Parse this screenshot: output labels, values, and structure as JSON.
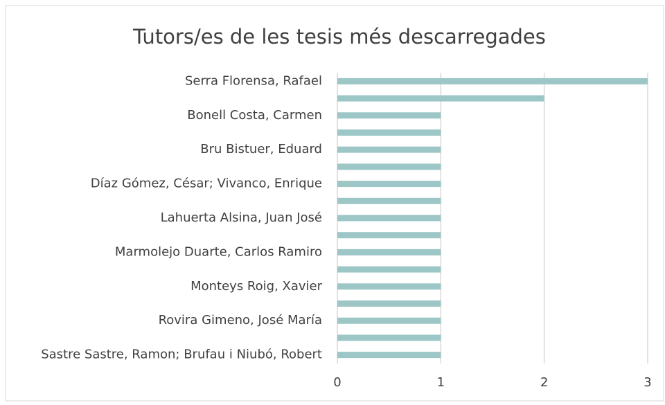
{
  "chart_data": {
    "type": "bar",
    "orientation": "horizontal",
    "title": "Tutors/es de les tesis més descarregades",
    "categories": [
      "Serra Florensa, Rafael",
      null,
      "Bonell Costa, Carmen",
      null,
      "Bru Bistuer, Eduard",
      null,
      "Díaz Gómez, César; Vivanco, Enrique",
      null,
      "Lahuerta Alsina, Juan José",
      null,
      "Marmolejo Duarte, Carlos Ramiro",
      null,
      "Monteys Roig, Xavier",
      null,
      "Rovira Gimeno, José María",
      null,
      "Sastre Sastre, Ramon; Brufau i Niubó, Robert"
    ],
    "values": [
      3,
      2,
      1,
      1,
      1,
      1,
      1,
      1,
      1,
      1,
      1,
      1,
      1,
      1,
      1,
      1,
      1
    ],
    "color": "#9dc6c6",
    "xlim": [
      0,
      3
    ],
    "xticks": [
      0,
      1,
      2,
      3
    ],
    "grid": true
  }
}
